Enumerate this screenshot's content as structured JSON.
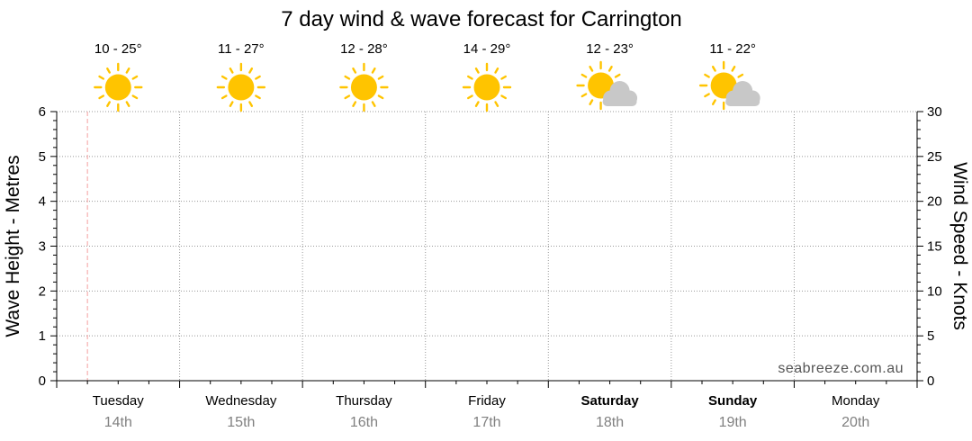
{
  "chart_data": {
    "type": "line",
    "title": "7 day wind & wave forecast for Carrington",
    "left_axis": {
      "label": "Wave Height - Metres",
      "ylim": [
        0,
        6
      ],
      "ticks": [
        "0",
        "1",
        "2",
        "3",
        "4",
        "5",
        "6"
      ]
    },
    "right_axis": {
      "label": "Wind Speed - Knots",
      "ylim": [
        0,
        30
      ],
      "ticks": [
        "0",
        "5",
        "10",
        "15",
        "20",
        "25",
        "30"
      ]
    },
    "grid": true,
    "current_time_marker_day_index": 0.25,
    "days": [
      {
        "name": "Tuesday",
        "date": "14th",
        "weekend": false,
        "temp": "10 - 25°",
        "icon": "sun-icon"
      },
      {
        "name": "Wednesday",
        "date": "15th",
        "weekend": false,
        "temp": "11 - 27°",
        "icon": "sun-icon"
      },
      {
        "name": "Thursday",
        "date": "16th",
        "weekend": false,
        "temp": "12 - 28°",
        "icon": "sun-icon"
      },
      {
        "name": "Friday",
        "date": "17th",
        "weekend": false,
        "temp": "14 - 29°",
        "icon": "sun-icon"
      },
      {
        "name": "Saturday",
        "date": "18th",
        "weekend": true,
        "temp": "12 - 23°",
        "icon": "partly-cloudy-icon"
      },
      {
        "name": "Sunday",
        "date": "19th",
        "weekend": true,
        "temp": "11 - 22°",
        "icon": "partly-cloudy-icon"
      },
      {
        "name": "Monday",
        "date": "20th",
        "weekend": false,
        "temp": "",
        "icon": ""
      }
    ],
    "series": []
  },
  "watermark": "seabreeze.com.au",
  "colors": {
    "sun": "#ffc400",
    "cloud": "#c8c8c8",
    "grid": "#999999",
    "axis": "#000000",
    "now_marker": "#f4a0a0",
    "date_text": "#808080"
  }
}
